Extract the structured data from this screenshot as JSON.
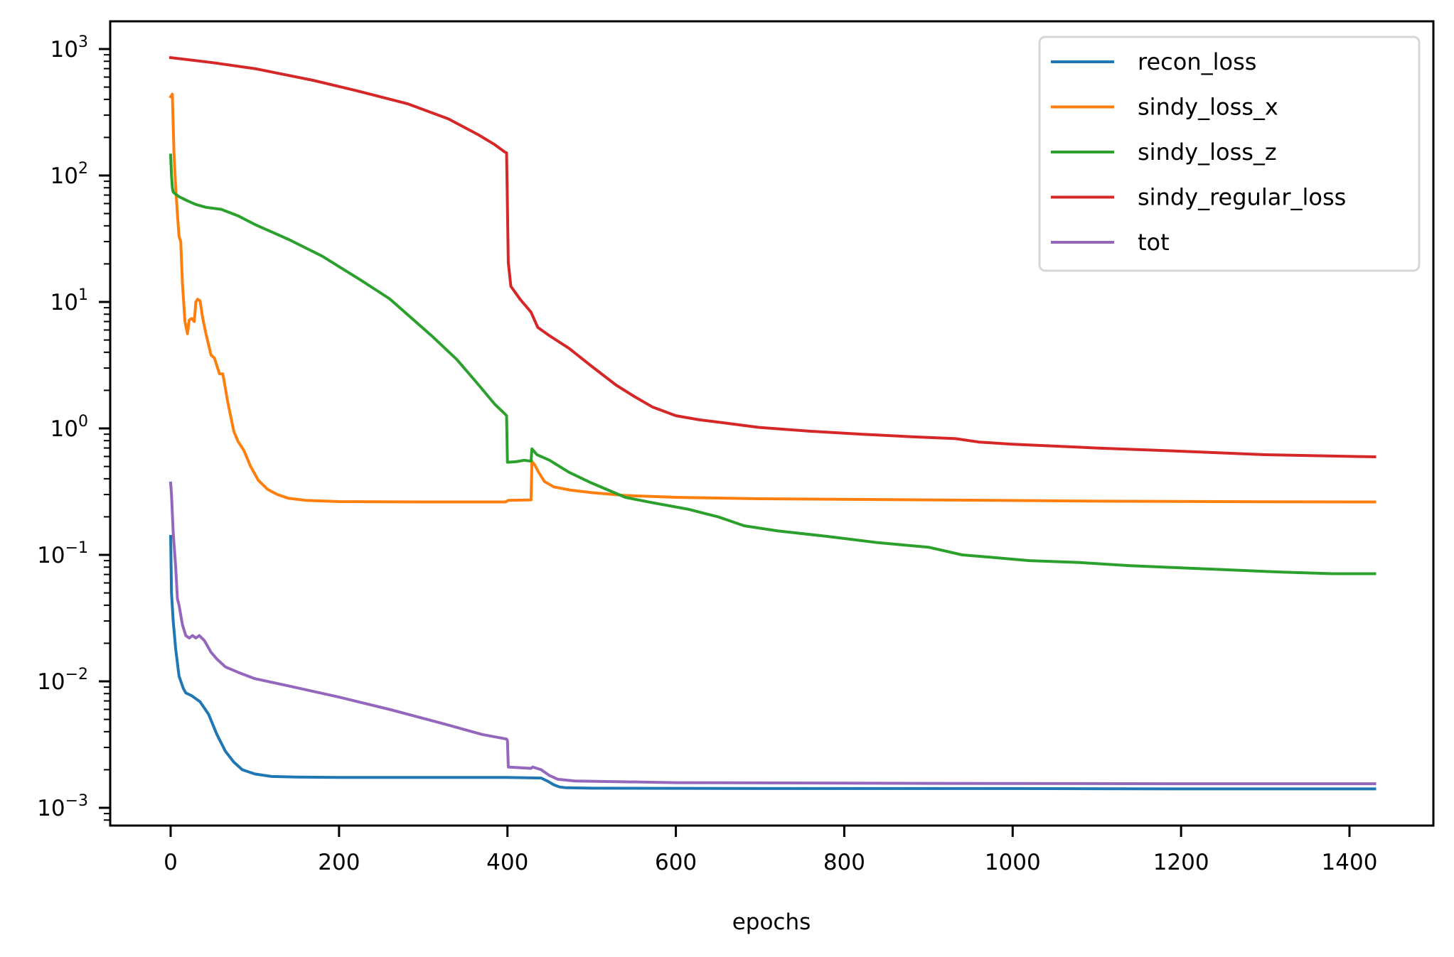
{
  "chart_data": {
    "type": "line",
    "title": "",
    "xlabel": "epochs",
    "ylabel": "",
    "yscale": "log",
    "xlim": [
      -58,
      1500
    ],
    "ylim": [
      0.00073,
      1660
    ],
    "grid": false,
    "legend_position": "upper right",
    "x_ticks": [
      0,
      200,
      400,
      600,
      800,
      1000,
      1200,
      1400
    ],
    "x_tick_labels": [
      "0",
      "200",
      "400",
      "600",
      "800",
      "1000",
      "1200",
      "1400"
    ],
    "y_ticks": [
      0.001,
      0.01,
      0.1,
      1,
      10,
      100,
      1000
    ],
    "y_tick_labels": [
      {
        "base": "10",
        "exp": "−3"
      },
      {
        "base": "10",
        "exp": "−2"
      },
      {
        "base": "10",
        "exp": "−1"
      },
      {
        "base": "10",
        "exp": "0"
      },
      {
        "base": "10",
        "exp": "1"
      },
      {
        "base": "10",
        "exp": "2"
      },
      {
        "base": "10",
        "exp": "3"
      }
    ],
    "series": [
      {
        "name": "recon_loss",
        "color": "#1f77b4",
        "x": [
          0,
          1,
          3,
          6,
          10,
          15,
          18,
          25,
          35,
          45,
          55,
          65,
          75,
          85,
          100,
          120,
          150,
          200,
          300,
          400,
          440,
          448,
          455,
          462,
          470,
          500,
          700,
          1000,
          1200,
          1430
        ],
        "y": [
          0.14,
          0.05,
          0.03,
          0.018,
          0.011,
          0.0088,
          0.0081,
          0.0077,
          0.0069,
          0.0055,
          0.0038,
          0.0028,
          0.0023,
          0.002,
          0.00185,
          0.00177,
          0.00175,
          0.00174,
          0.00174,
          0.00174,
          0.00172,
          0.00162,
          0.00152,
          0.00146,
          0.00144,
          0.00143,
          0.00142,
          0.00142,
          0.00141,
          0.00141
        ]
      },
      {
        "name": "sindy_loss_x",
        "color": "#ff7f0e",
        "x": [
          0,
          2,
          4,
          6,
          8,
          10,
          12,
          14,
          17,
          20,
          22,
          25,
          28,
          30,
          32,
          35,
          38,
          42,
          48,
          52,
          58,
          62,
          68,
          75,
          80,
          87,
          95,
          104,
          115,
          127,
          140,
          160,
          200,
          245,
          300,
          398,
          401,
          428,
          429,
          432,
          437,
          444,
          455,
          475,
          501,
          540,
          600,
          700,
          900,
          1100,
          1300,
          1430
        ],
        "y": [
          420,
          440,
          150,
          80,
          50,
          33,
          30,
          14,
          7,
          5.6,
          7.2,
          7.4,
          7.0,
          10,
          10.5,
          10.2,
          7.5,
          5.6,
          3.8,
          3.6,
          2.7,
          2.7,
          1.6,
          0.95,
          0.79,
          0.67,
          0.5,
          0.39,
          0.33,
          0.3,
          0.28,
          0.27,
          0.264,
          0.263,
          0.262,
          0.262,
          0.27,
          0.272,
          0.55,
          0.52,
          0.45,
          0.38,
          0.345,
          0.325,
          0.31,
          0.295,
          0.285,
          0.278,
          0.272,
          0.266,
          0.263,
          0.262
        ]
      },
      {
        "name": "sindy_loss_z",
        "color": "#2ca02c",
        "x": [
          0,
          1,
          2,
          3,
          5,
          10,
          20,
          30,
          42,
          60,
          80,
          100,
          141,
          180,
          225,
          260,
          310,
          340,
          366,
          385,
          397,
          399,
          400,
          410,
          420,
          428,
          429,
          435,
          450,
          473,
          500,
          540,
          570,
          614,
          650,
          681,
          720,
          780,
          840,
          900,
          940,
          980,
          1020,
          1080,
          1140,
          1200,
          1260,
          1320,
          1380,
          1430
        ],
        "y": [
          145,
          100,
          80,
          74,
          72,
          68,
          63,
          59,
          56,
          54,
          48,
          41,
          31,
          23,
          15,
          10.6,
          5.4,
          3.5,
          2.2,
          1.55,
          1.3,
          1.26,
          0.54,
          0.545,
          0.56,
          0.55,
          0.69,
          0.62,
          0.56,
          0.45,
          0.37,
          0.285,
          0.26,
          0.23,
          0.2,
          0.17,
          0.155,
          0.14,
          0.125,
          0.115,
          0.1,
          0.095,
          0.09,
          0.087,
          0.082,
          0.079,
          0.076,
          0.073,
          0.071,
          0.071
        ]
      },
      {
        "name": "sindy_regular_loss",
        "color": "#d62728",
        "x": [
          0,
          50,
          100,
          169,
          220,
          281,
          330,
          366,
          385,
          397,
          399,
          401,
          404,
          415,
          428,
          436,
          450,
          473,
          500,
          529,
          550,
          572,
          600,
          628,
          660,
          698,
          760,
          820,
          880,
          932,
          960,
          1000,
          1100,
          1200,
          1300,
          1430
        ],
        "y": [
          855,
          780,
          700,
          566,
          470,
          370,
          280,
          209,
          175,
          153,
          151,
          20.5,
          13.3,
          10.5,
          8.3,
          6.3,
          5.4,
          4.3,
          3.1,
          2.2,
          1.8,
          1.48,
          1.26,
          1.17,
          1.1,
          1.02,
          0.95,
          0.9,
          0.86,
          0.83,
          0.78,
          0.75,
          0.7,
          0.66,
          0.62,
          0.596
        ]
      },
      {
        "name": "tot",
        "color": "#9467bd",
        "x": [
          0,
          1,
          3,
          6,
          8,
          10,
          14,
          18,
          22,
          26,
          30,
          34,
          40,
          48,
          55,
          65,
          80,
          100,
          140,
          200,
          260,
          320,
          370,
          399,
          400,
          401,
          428,
          430,
          440,
          450,
          460,
          480,
          600,
          900,
          1200,
          1430
        ],
        "y": [
          0.37,
          0.3,
          0.15,
          0.08,
          0.045,
          0.04,
          0.028,
          0.023,
          0.022,
          0.023,
          0.022,
          0.023,
          0.021,
          0.017,
          0.015,
          0.013,
          0.0118,
          0.0105,
          0.0092,
          0.0075,
          0.006,
          0.0047,
          0.0038,
          0.0035,
          0.0034,
          0.0021,
          0.00205,
          0.0021,
          0.002,
          0.0018,
          0.00168,
          0.00163,
          0.00158,
          0.00156,
          0.00155,
          0.00155
        ]
      }
    ]
  },
  "legend": {
    "items": [
      {
        "label": "recon_loss",
        "color": "#1f77b4"
      },
      {
        "label": "sindy_loss_x",
        "color": "#ff7f0e"
      },
      {
        "label": "sindy_loss_z",
        "color": "#2ca02c"
      },
      {
        "label": "sindy_regular_loss",
        "color": "#d62728"
      },
      {
        "label": "tot",
        "color": "#9467bd"
      }
    ]
  },
  "axes": {
    "xlabel": "epochs"
  }
}
